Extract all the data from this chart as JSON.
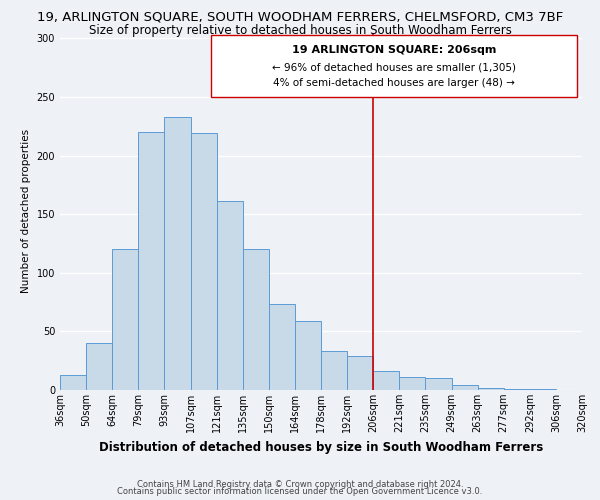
{
  "title": "19, ARLINGTON SQUARE, SOUTH WOODHAM FERRERS, CHELMSFORD, CM3 7BF",
  "subtitle": "Size of property relative to detached houses in South Woodham Ferrers",
  "xlabel": "Distribution of detached houses by size in South Woodham Ferrers",
  "ylabel": "Number of detached properties",
  "footer1": "Contains HM Land Registry data © Crown copyright and database right 2024.",
  "footer2": "Contains public sector information licensed under the Open Government Licence v3.0.",
  "bin_labels": [
    "36sqm",
    "50sqm",
    "64sqm",
    "79sqm",
    "93sqm",
    "107sqm",
    "121sqm",
    "135sqm",
    "150sqm",
    "164sqm",
    "178sqm",
    "192sqm",
    "206sqm",
    "221sqm",
    "235sqm",
    "249sqm",
    "263sqm",
    "277sqm",
    "292sqm",
    "306sqm",
    "320sqm"
  ],
  "bar_values": [
    13,
    40,
    120,
    220,
    233,
    219,
    161,
    120,
    73,
    59,
    33,
    29,
    16,
    11,
    10,
    4,
    2,
    1,
    1,
    0
  ],
  "bar_color": "#c8d9e8",
  "bar_edge_color": "#5b9bd5",
  "vline_color": "#cc0000",
  "annotation_title": "19 ARLINGTON SQUARE: 206sqm",
  "annotation_line1": "← 96% of detached houses are smaller (1,305)",
  "annotation_line2": "4% of semi-detached houses are larger (48) →",
  "ylim": [
    0,
    305
  ],
  "yticks": [
    0,
    50,
    100,
    150,
    200,
    250,
    300
  ],
  "title_fontsize": 9.5,
  "subtitle_fontsize": 8.5,
  "xlabel_fontsize": 8.5,
  "ylabel_fontsize": 7.5,
  "tick_fontsize": 7,
  "annotation_title_fontsize": 8,
  "annotation_body_fontsize": 7.5,
  "footer_fontsize": 6,
  "background_color": "#eef2f7"
}
